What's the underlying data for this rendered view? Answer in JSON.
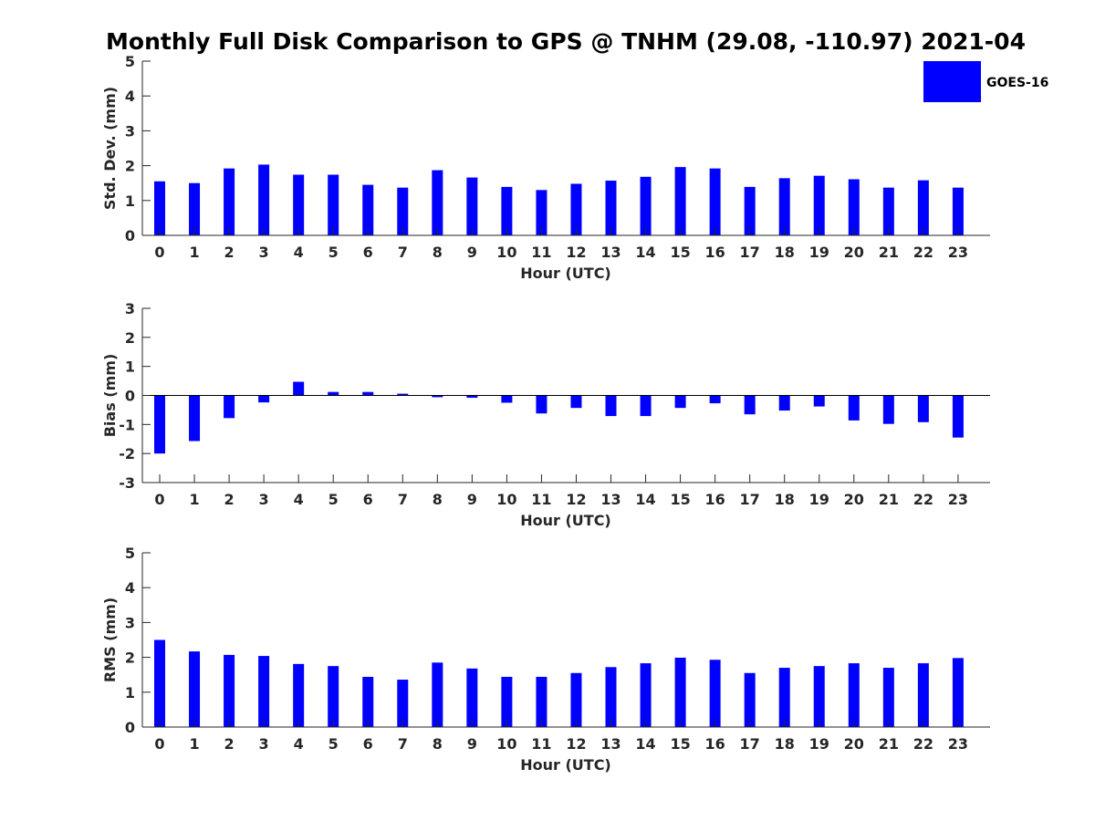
{
  "chart_data": [
    {
      "type": "bar",
      "title": "Monthly Full Disk Comparison to GPS @ TNHM (29.08, -110.97) 2021-04",
      "xlabel": "Hour (UTC)",
      "ylabel": "Std. Dev. (mm)",
      "ylim": [
        0,
        5
      ],
      "yticks": [
        "0",
        "1",
        "2",
        "3",
        "4",
        "5"
      ],
      "categories": [
        "0",
        "1",
        "2",
        "3",
        "4",
        "5",
        "6",
        "7",
        "8",
        "9",
        "10",
        "11",
        "12",
        "13",
        "14",
        "15",
        "16",
        "17",
        "18",
        "19",
        "20",
        "21",
        "22",
        "23"
      ],
      "series": [
        {
          "name": "GOES-16",
          "color": "#0000ff",
          "values": [
            1.55,
            1.5,
            1.92,
            2.03,
            1.74,
            1.74,
            1.45,
            1.37,
            1.87,
            1.66,
            1.39,
            1.3,
            1.48,
            1.57,
            1.68,
            1.96,
            1.92,
            1.39,
            1.64,
            1.71,
            1.61,
            1.37,
            1.58,
            1.37
          ]
        }
      ],
      "legend": {
        "position": "top-right",
        "entries": [
          "GOES-16"
        ]
      },
      "grid": false
    },
    {
      "type": "bar",
      "title": "",
      "xlabel": "Hour (UTC)",
      "ylabel": "Bias (mm)",
      "ylim": [
        -3,
        3
      ],
      "yticks": [
        "-3",
        "-2",
        "-1",
        "0",
        "1",
        "2",
        "3"
      ],
      "categories": [
        "0",
        "1",
        "2",
        "3",
        "4",
        "5",
        "6",
        "7",
        "8",
        "9",
        "10",
        "11",
        "12",
        "13",
        "14",
        "15",
        "16",
        "17",
        "18",
        "19",
        "20",
        "21",
        "22",
        "23"
      ],
      "series": [
        {
          "name": "GOES-16",
          "color": "#0000ff",
          "values": [
            -2.0,
            -1.57,
            -0.78,
            -0.24,
            0.47,
            0.12,
            0.12,
            0.06,
            -0.06,
            -0.08,
            -0.25,
            -0.62,
            -0.43,
            -0.71,
            -0.71,
            -0.43,
            -0.27,
            -0.65,
            -0.52,
            -0.38,
            -0.86,
            -0.98,
            -0.92,
            -1.45
          ]
        }
      ],
      "grid": false
    },
    {
      "type": "bar",
      "title": "",
      "xlabel": "Hour (UTC)",
      "ylabel": "RMS (mm)",
      "ylim": [
        0,
        5
      ],
      "yticks": [
        "0",
        "1",
        "2",
        "3",
        "4",
        "5"
      ],
      "categories": [
        "0",
        "1",
        "2",
        "3",
        "4",
        "5",
        "6",
        "7",
        "8",
        "9",
        "10",
        "11",
        "12",
        "13",
        "14",
        "15",
        "16",
        "17",
        "18",
        "19",
        "20",
        "21",
        "22",
        "23"
      ],
      "series": [
        {
          "name": "GOES-16",
          "color": "#0000ff",
          "values": [
            2.5,
            2.17,
            2.07,
            2.04,
            1.81,
            1.75,
            1.44,
            1.36,
            1.85,
            1.68,
            1.44,
            1.44,
            1.55,
            1.72,
            1.83,
            1.99,
            1.93,
            1.55,
            1.7,
            1.75,
            1.83,
            1.7,
            1.83,
            1.98
          ]
        }
      ],
      "grid": false
    }
  ]
}
